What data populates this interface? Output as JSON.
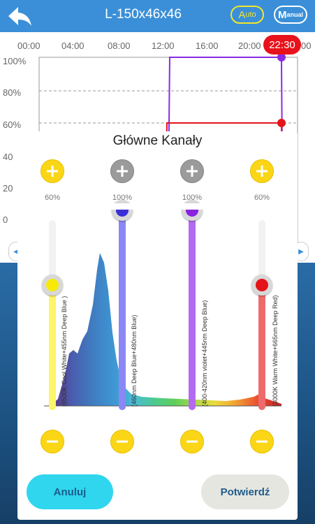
{
  "header": {
    "title": "L-150x46x46",
    "mode_auto": {
      "big": "A",
      "small": "uto"
    },
    "mode_manual": {
      "big": "M",
      "small": "anual"
    },
    "back_icon": "back-arrow-icon"
  },
  "timeline": {
    "hours": [
      "00:00",
      "04:00",
      "08:00",
      "12:00",
      "16:00",
      "20:00",
      "00"
    ],
    "current_time": "22:30",
    "percent_labels": [
      "100%",
      "80%",
      "60%",
      "40",
      "20",
      "0"
    ]
  },
  "dialog": {
    "title": "Główne Kanały",
    "channels": [
      {
        "label": "(6500K Cool White+455nm Deep Blue )",
        "percent": "60%",
        "level": 0.6,
        "color": "#fdf56a",
        "knob_color": "#f7ea08",
        "button_color": "yellow"
      },
      {
        "label": "(460nm Deep Blue+480nm Blue)",
        "percent": "100%",
        "level": 1.0,
        "color": "#8b87f5",
        "knob_color": "#3a2fd6",
        "button_color": "gray"
      },
      {
        "label": "(400-420nm violet+445nm Deep Blue)",
        "percent": "100%",
        "level": 1.0,
        "color": "#b36af0",
        "knob_color": "#8a23df",
        "button_color": "gray"
      },
      {
        "label": "(3000K Warm White+665nm Deep Red)",
        "percent": "60%",
        "level": 0.6,
        "color": "#ee6b6b",
        "knob_color": "#e3141a",
        "button_color": "yellow"
      }
    ],
    "cancel_label": "Anuluj",
    "confirm_label": "Potwierdź"
  }
}
